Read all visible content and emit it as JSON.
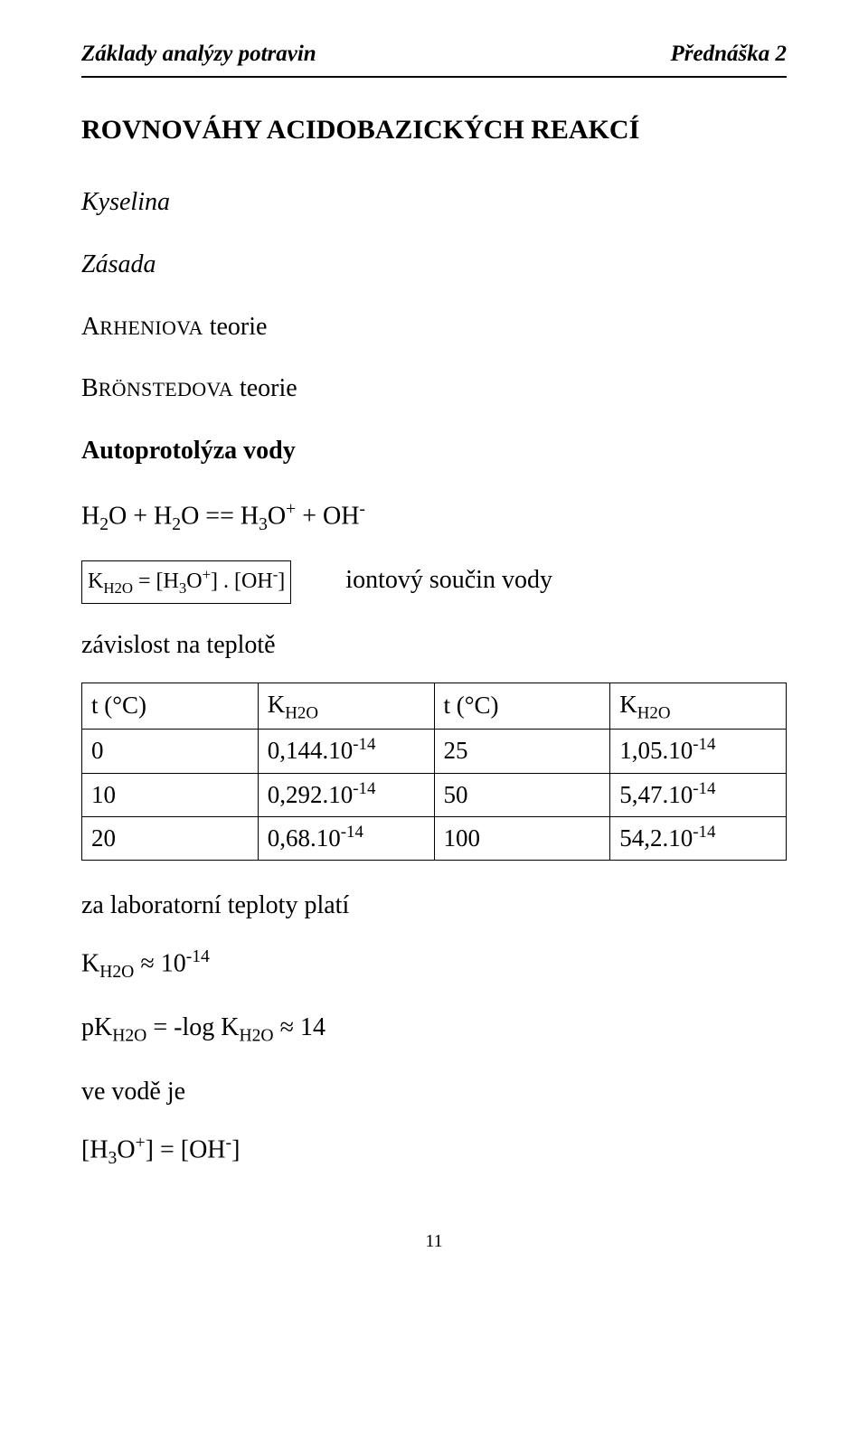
{
  "header": {
    "left": "Základy analýzy potravin",
    "right": "Přednáška 2"
  },
  "title": "ROVNOVÁHY ACIDOBAZICKÝCH REAKCÍ",
  "italic_lines": {
    "kyselina": "Kyselina",
    "zasada": "Zásada"
  },
  "theories": {
    "arheniova": {
      "cap": "A",
      "sc": "RHENIOVA",
      "tail": " teorie"
    },
    "bronstedova": {
      "cap": "B",
      "sc": "RÖNSTEDOVA",
      "tail": " teorie"
    }
  },
  "autoprotolysis": {
    "heading": "Autoprotolýza vody",
    "eq1": {
      "lhs1": "H",
      "sub1": "2",
      "lhs2": "O + H",
      "sub2": "2",
      "lhs3": "O == H",
      "sub3": "3",
      "lhs4": "O",
      "sup1": "+",
      "lhs5": " + OH",
      "sup2": "-"
    },
    "boxed": {
      "k_prefix": "K",
      "k_sub": "H2O",
      "k_mid": " = [H",
      "h_sub": "3",
      "k_mid2": "O",
      "h_sup": "+",
      "k_mid3": "] . [OH",
      "oh_sup": "-",
      "k_end": "]"
    },
    "iontovy_desc": "iontový součin vody",
    "dependence": "závislost na teplotě"
  },
  "table": {
    "headers": {
      "c1": {
        "a": "t (°C)"
      },
      "c2": {
        "a": "K",
        "sub": "H2O"
      },
      "c3": {
        "a": "t (°C)"
      },
      "c4": {
        "a": "K",
        "sub": "H2O"
      }
    },
    "rows": [
      {
        "c1": "0",
        "c2_m": "0,144.10",
        "c2_e": "-14",
        "c3": "25",
        "c4_m": "1,05.10",
        "c4_e": "-14"
      },
      {
        "c1": "10",
        "c2_m": "0,292.10",
        "c2_e": "-14",
        "c3": "50",
        "c4_m": "5,47.10",
        "c4_e": "-14"
      },
      {
        "c1": "20",
        "c2_m": "0,68.10",
        "c2_e": "-14",
        "c3": "100",
        "c4_m": "54,2.10",
        "c4_e": "-14"
      }
    ]
  },
  "footer_lines": {
    "lab_temp": "za laboratorní teploty platí",
    "khex": {
      "k": "K",
      "sub": "H2O",
      "approx": " ≈ 10",
      "exp": "-14"
    },
    "pk": {
      "p": "pK",
      "sub": "H2O",
      "eq": " = -log K",
      "sub2": "H2O",
      "approx": " ≈ 14"
    },
    "ve_vode": "ve vodě je",
    "concentration": {
      "a": "[H",
      "sub1": "3",
      "b": "O",
      "sup1": "+",
      "c": "] = [OH",
      "sup2": "-",
      "d": "]"
    }
  },
  "page_number": "11"
}
